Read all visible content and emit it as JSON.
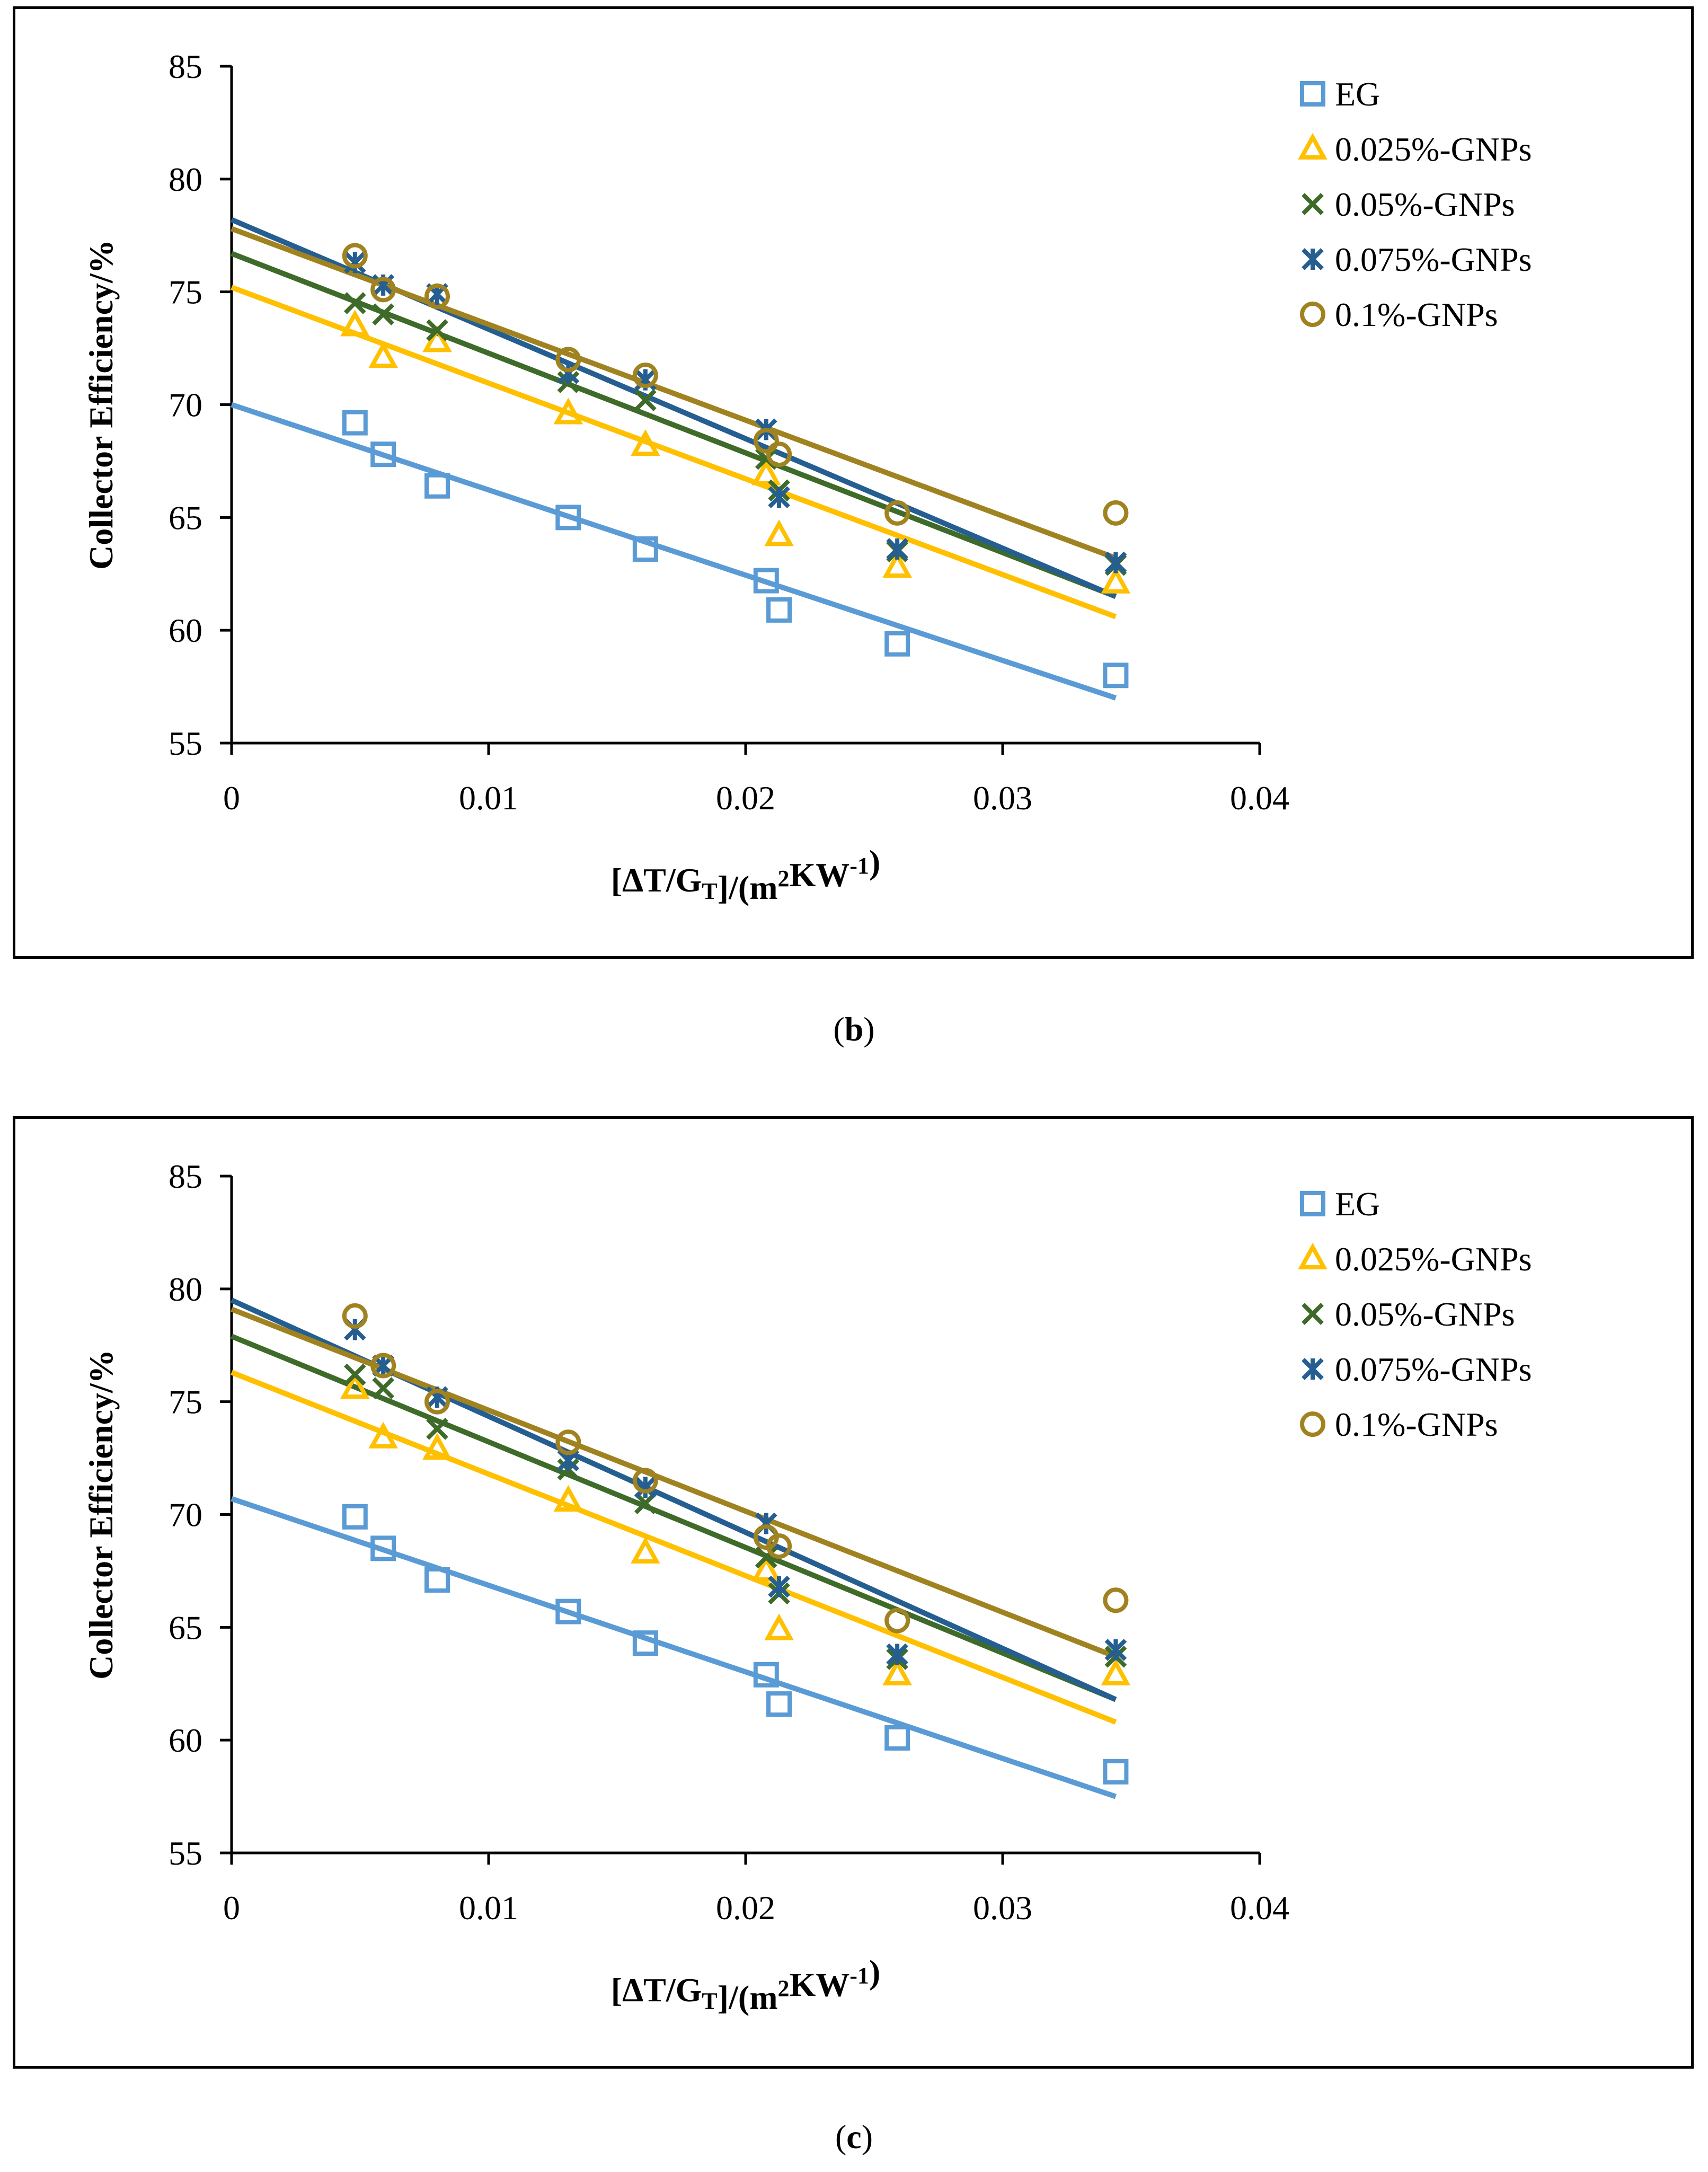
{
  "chart_data": [
    {
      "type": "scatter",
      "panel": "b",
      "caption_letter": "b",
      "xlabel": "[ΔT/G_T]/(m²KW⁻¹)",
      "ylabel": "Collector  Efficiency/%",
      "xlim": [
        0,
        0.04
      ],
      "ylim": [
        55,
        85
      ],
      "x_ticks": [
        "0",
        "0.01",
        "0.02",
        "0.03",
        "0.04"
      ],
      "y_ticks": [
        "55",
        "60",
        "65",
        "70",
        "75",
        "80",
        "85"
      ],
      "legend_position": "top-right",
      "series": [
        {
          "name": "EG",
          "marker": "square",
          "color": "#5B9BD5",
          "x": [
            0.0048,
            0.0059,
            0.008,
            0.0131,
            0.0161,
            0.0208,
            0.0213,
            0.0259,
            0.0344
          ],
          "y": [
            69.2,
            67.8,
            66.4,
            65.0,
            63.6,
            62.2,
            60.9,
            59.4,
            58.0
          ],
          "trend": [
            70.0,
            57.0
          ]
        },
        {
          "name": "0.025%-GNPs",
          "marker": "triangle",
          "color": "#FFC000",
          "x": [
            0.0048,
            0.0059,
            0.008,
            0.0131,
            0.0161,
            0.0208,
            0.0213,
            0.0259,
            0.0344
          ],
          "y": [
            73.5,
            72.1,
            72.8,
            69.6,
            68.2,
            66.9,
            64.2,
            62.8,
            62.1
          ],
          "trend": [
            75.2,
            60.6
          ]
        },
        {
          "name": "0.05%-GNPs",
          "marker": "x",
          "color": "#3F6B2A",
          "x": [
            0.0048,
            0.0059,
            0.008,
            0.0131,
            0.0161,
            0.0208,
            0.0213,
            0.0259,
            0.0344
          ],
          "y": [
            74.5,
            74.0,
            73.3,
            71.0,
            70.2,
            67.6,
            66.2,
            63.5,
            62.9
          ],
          "trend": [
            76.7,
            61.5
          ]
        },
        {
          "name": "0.075%-GNPs",
          "marker": "star",
          "color": "#255E91",
          "x": [
            0.0048,
            0.0059,
            0.008,
            0.0131,
            0.0161,
            0.0208,
            0.0213,
            0.0259,
            0.0344
          ],
          "y": [
            76.3,
            75.3,
            74.9,
            71.4,
            71.1,
            68.9,
            65.9,
            63.6,
            63.0
          ],
          "trend": [
            78.2,
            61.5
          ]
        },
        {
          "name": "0.1%-GNPs",
          "marker": "circle",
          "color": "#A08320",
          "x": [
            0.0048,
            0.0059,
            0.008,
            0.0131,
            0.0161,
            0.0208,
            0.0213,
            0.0259,
            0.0344
          ],
          "y": [
            76.6,
            75.1,
            74.8,
            72.0,
            71.3,
            68.4,
            67.8,
            65.2,
            65.2
          ],
          "trend": [
            77.8,
            63.2
          ]
        }
      ]
    },
    {
      "type": "scatter",
      "panel": "c",
      "caption_letter": "c",
      "xlabel": "[ΔT/G_T]/(m²KW⁻¹)",
      "ylabel": "Collector  Efficiency/%",
      "xlim": [
        0,
        0.04
      ],
      "ylim": [
        55,
        85
      ],
      "x_ticks": [
        "0",
        "0.01",
        "0.02",
        "0.03",
        "0.04"
      ],
      "y_ticks": [
        "55",
        "60",
        "65",
        "70",
        "75",
        "80",
        "85"
      ],
      "legend_position": "top-right",
      "series": [
        {
          "name": "EG",
          "marker": "square",
          "color": "#5B9BD5",
          "x": [
            0.0048,
            0.0059,
            0.008,
            0.0131,
            0.0161,
            0.0208,
            0.0213,
            0.0259,
            0.0344
          ],
          "y": [
            69.9,
            68.5,
            67.1,
            65.7,
            64.3,
            62.9,
            61.6,
            60.1,
            58.6
          ],
          "trend": [
            70.7,
            57.5
          ]
        },
        {
          "name": "0.025%-GNPs",
          "marker": "triangle",
          "color": "#FFC000",
          "x": [
            0.0048,
            0.0059,
            0.008,
            0.0131,
            0.0161,
            0.0208,
            0.0213,
            0.0259,
            0.0344
          ],
          "y": [
            75.6,
            73.4,
            72.9,
            70.6,
            68.3,
            67.5,
            64.9,
            62.9,
            62.9
          ],
          "trend": [
            76.3,
            60.8
          ]
        },
        {
          "name": "0.05%-GNPs",
          "marker": "x",
          "color": "#3F6B2A",
          "x": [
            0.0048,
            0.0059,
            0.008,
            0.0131,
            0.0161,
            0.0208,
            0.0213,
            0.0259,
            0.0344
          ],
          "y": [
            76.2,
            75.6,
            73.8,
            72.0,
            70.5,
            68.1,
            66.5,
            63.6,
            63.7
          ],
          "trend": [
            77.9,
            61.8
          ]
        },
        {
          "name": "0.075%-GNPs",
          "marker": "star",
          "color": "#255E91",
          "x": [
            0.0048,
            0.0059,
            0.008,
            0.0131,
            0.0161,
            0.0208,
            0.0213,
            0.0259,
            0.0344
          ],
          "y": [
            78.2,
            76.6,
            75.2,
            72.4,
            71.2,
            69.6,
            66.8,
            63.8,
            64.0
          ],
          "trend": [
            79.5,
            61.8
          ]
        },
        {
          "name": "0.1%-GNPs",
          "marker": "circle",
          "color": "#A08320",
          "x": [
            0.0048,
            0.0059,
            0.008,
            0.0131,
            0.0161,
            0.0208,
            0.0213,
            0.0259,
            0.0344
          ],
          "y": [
            78.8,
            76.6,
            75.0,
            73.2,
            71.5,
            69.0,
            68.6,
            65.3,
            66.2
          ],
          "trend": [
            79.1,
            63.7
          ]
        }
      ]
    }
  ],
  "captions": {
    "b": {
      "open": "(",
      "letter": "b",
      "close": ")"
    },
    "c": {
      "open": "(",
      "letter": "c",
      "close": ")"
    }
  },
  "axis_label_parts": {
    "x_prefix": "[ΔT/G",
    "x_sub": "T",
    "x_mid": "]/(m",
    "x_sup2": "2",
    "x_kw": "KW",
    "x_supneg": "-1",
    "x_end": ")",
    "y": "Collector  Efficiency/%"
  }
}
